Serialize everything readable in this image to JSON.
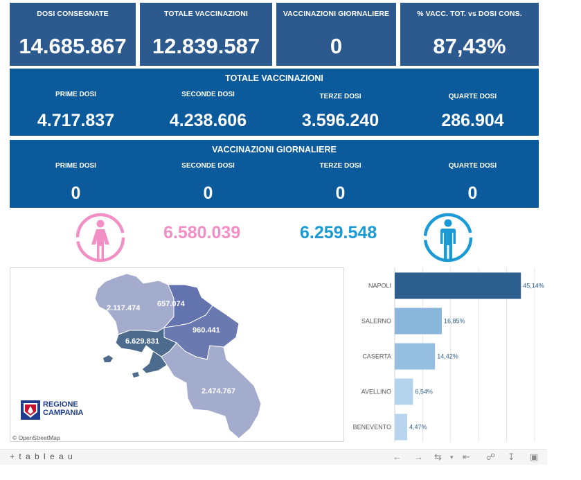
{
  "kpis": [
    {
      "label": "DOSI  CONSEGNATE",
      "value": "14.685.867"
    },
    {
      "label": "TOTALE VACCINAZIONI",
      "value": "12.839.587"
    },
    {
      "label": "VACCINAZIONI GIORNALIERE",
      "value": "0"
    },
    {
      "label": "% VACC. TOT. vs DOSI CONS.",
      "value": "87,43%"
    }
  ],
  "totale": {
    "title": "TOTALE VACCINAZIONI",
    "cols": [
      {
        "label": "PRIME DOSI",
        "value": "4.717.837"
      },
      {
        "label": "SECONDE DOSI",
        "value": "4.238.606"
      },
      {
        "label": "TERZE DOSI",
        "value": "3.596.240"
      },
      {
        "label": "QUARTE DOSI",
        "value": "286.904"
      }
    ]
  },
  "giornaliere": {
    "title": "VACCINAZIONI GIORNALIERE",
    "cols": [
      {
        "label": "PRIME DOSI",
        "value": "0"
      },
      {
        "label": "SECONDE DOSI",
        "value": "0"
      },
      {
        "label": "TERZE DOSI",
        "value": "0"
      },
      {
        "label": "QUARTE DOSI",
        "value": "0"
      }
    ]
  },
  "gender": {
    "female_value": "6.580.039",
    "male_value": "6.259.548",
    "female_color": "#f28fc4",
    "male_color": "#1a9bd6",
    "female_icon": "female-person-icon",
    "male_icon": "male-person-icon"
  },
  "map": {
    "labels": {
      "caserta": "2.117.474",
      "benevento": "657.074",
      "avellino": "960.441",
      "napoli": "6.629.831",
      "salerno": "2.474.767"
    },
    "logo_line1": "REGIONE",
    "logo_line2": "CAMPANIA",
    "attribution": "© OpenStreetMap"
  },
  "chart_data": {
    "type": "bar",
    "orientation": "horizontal",
    "categories": [
      "NAPOLI",
      "SALERNO",
      "CASERTA",
      "AVELLINO",
      "BENEVENTO"
    ],
    "values": [
      45.14,
      16.85,
      14.42,
      6.54,
      4.47
    ],
    "value_labels": [
      "45,14%",
      "16,85%",
      "14,42%",
      "6,54%",
      "4,47%"
    ],
    "xlim": [
      0,
      55
    ],
    "grid": true,
    "colors": [
      "#2d5f8e",
      "#8bb6dc",
      "#95bee0",
      "#b3d3ec",
      "#b7d6ee"
    ]
  },
  "footer": {
    "brand": "+ t a b l e a u"
  }
}
